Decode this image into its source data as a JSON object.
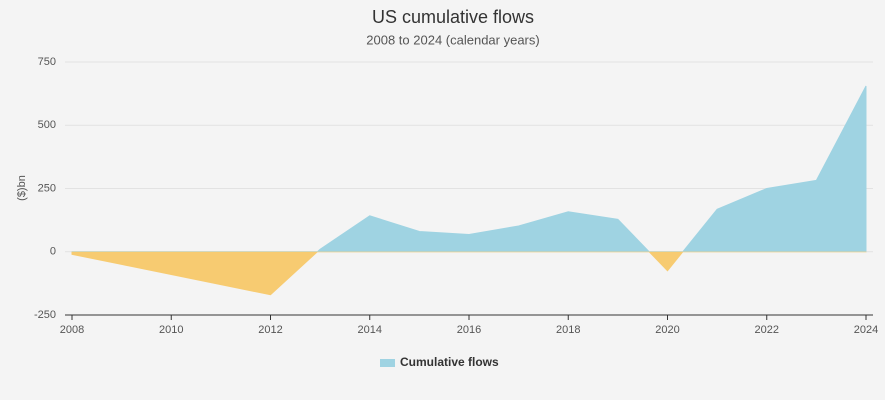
{
  "chart_data": {
    "type": "area",
    "title": "US cumulative flows",
    "subtitle": "2008 to 2024 (calendar years)",
    "y_label": "($)bn",
    "x": [
      2008,
      2009,
      2010,
      2011,
      2012,
      2013,
      2014,
      2015,
      2016,
      2017,
      2018,
      2019,
      2020,
      2021,
      2022,
      2023,
      2024
    ],
    "series": [
      {
        "name": "Cumulative flows",
        "color": "#9fd3e2",
        "negative_color": "#f7cb71",
        "values": [
          -10,
          -50,
          -90,
          -130,
          -170,
          10,
          142,
          80,
          68,
          102,
          158,
          128,
          -75,
          168,
          250,
          282,
          655
        ]
      }
    ],
    "xlim": [
      2008,
      2024
    ],
    "xticks": [
      2008,
      2010,
      2012,
      2014,
      2016,
      2018,
      2020,
      2022,
      2024
    ],
    "ylim": [
      -250,
      750
    ],
    "yticks": [
      -250,
      0,
      250,
      500,
      750
    ],
    "grid": true
  }
}
